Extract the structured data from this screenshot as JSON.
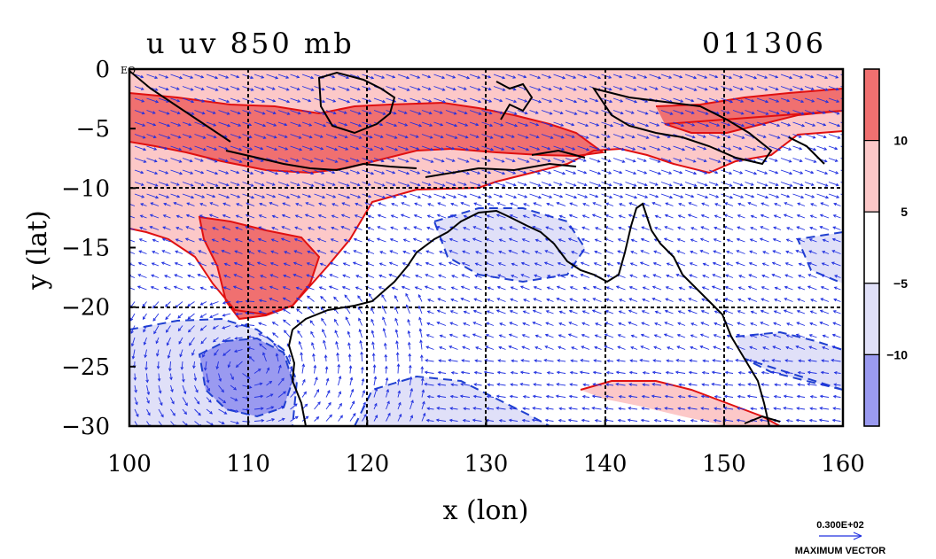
{
  "chart_data": {
    "type": "heatmap",
    "title": "u uv 850 mb",
    "date_label": "011306",
    "xlabel": "x (lon)",
    "ylabel": "y (lat)",
    "xlim": [
      100,
      160
    ],
    "ylim": [
      -30,
      0
    ],
    "xticks": [
      "100",
      "110",
      "120",
      "130",
      "140",
      "150",
      "160"
    ],
    "xtick_values": [
      100,
      110,
      120,
      130,
      140,
      150,
      160
    ],
    "yticks": [
      "0",
      "−5",
      "−10",
      "−15",
      "−20",
      "−25",
      "−30"
    ],
    "ytick_values": [
      0,
      -5,
      -10,
      -15,
      -20,
      -25,
      -30
    ],
    "eq_label": "EQ",
    "grid": true,
    "colorbar": {
      "labels": [
        "10",
        "5",
        "−5",
        "−10"
      ],
      "label_values": [
        10,
        5,
        -5,
        -10
      ],
      "colors": [
        "#f07070",
        "#fcc8c8",
        "#ffffff",
        "#e0e0f8",
        "#9a9af0"
      ]
    },
    "vector_legend": {
      "value": "0.300E+02",
      "label": "MAXIMUM VECTOR"
    },
    "colors": {
      "positive_contour": "#e01010",
      "negative_contour": "#2040d0",
      "vector": "#2030e0",
      "coast": "#000000"
    }
  }
}
